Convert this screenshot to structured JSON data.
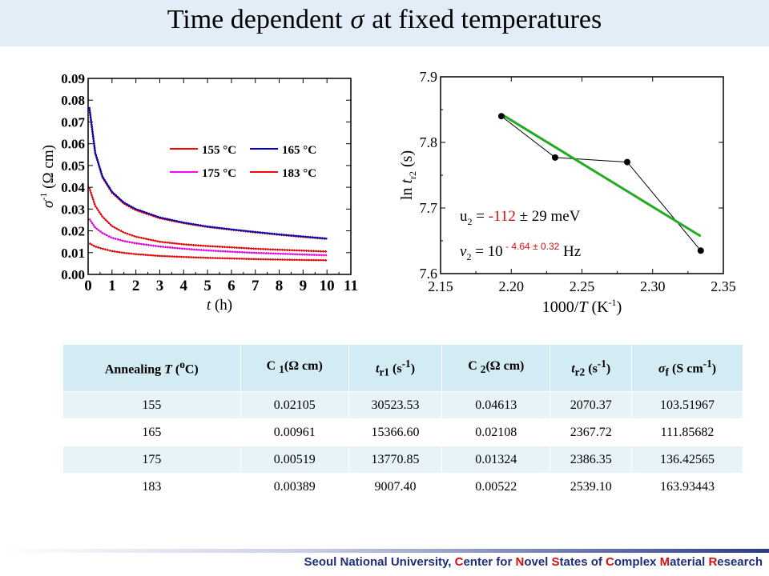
{
  "title": {
    "pre": "Time dependent",
    "sigma": "σ",
    "post": "at fixed temperatures"
  },
  "chart_data": [
    {
      "type": "line",
      "xlabel": "t (h)",
      "ylabel": "σ -1 (Ω cm)",
      "xlim": [
        0,
        11
      ],
      "ylim": [
        0,
        0.09
      ],
      "x_ticks": [
        "0",
        "1",
        "2",
        "3",
        "4",
        "5",
        "6",
        "7",
        "8",
        "9",
        "10",
        "11"
      ],
      "y_ticks": [
        "0.00",
        "0.01",
        "0.02",
        "0.03",
        "0.04",
        "0.05",
        "0.06",
        "0.07",
        "0.08",
        "0.09"
      ],
      "legend_position": "center-right",
      "series": [
        {
          "name": "155 °C",
          "color": "#ff0000",
          "x": [
            0.05,
            0.3,
            0.6,
            1,
            1.5,
            2,
            3,
            4,
            5,
            6,
            7,
            8,
            9,
            10
          ],
          "values": [
            0.0765,
            0.0555,
            0.0445,
            0.0375,
            0.0325,
            0.0295,
            0.0258,
            0.0235,
            0.0218,
            0.0205,
            0.0193,
            0.0182,
            0.0172,
            0.0163
          ]
        },
        {
          "name": "165 °C",
          "color": "#0000cc",
          "x": [
            0.05,
            0.3,
            0.6,
            1,
            1.5,
            2,
            3,
            4,
            5,
            6,
            7,
            8,
            9,
            10
          ],
          "values": [
            0.0768,
            0.056,
            0.045,
            0.038,
            0.033,
            0.03,
            0.0262,
            0.0238,
            0.022,
            0.0207,
            0.0195,
            0.0184,
            0.0174,
            0.0165
          ]
        },
        {
          "name": "175 °C",
          "color": "#ff00ff",
          "x": [
            0.05,
            0.3,
            0.6,
            1,
            1.5,
            2,
            3,
            4,
            5,
            6,
            7,
            8,
            9,
            10
          ],
          "values": [
            0.0255,
            0.0215,
            0.019,
            0.0168,
            0.0153,
            0.0143,
            0.0128,
            0.0118,
            0.011,
            0.0104,
            0.0099,
            0.0095,
            0.0091,
            0.0088
          ]
        },
        {
          "name": "183 °C",
          "color": "#ff0000",
          "x": [
            0.05,
            0.3,
            0.6,
            1,
            1.5,
            2,
            3,
            4,
            5,
            6,
            7,
            8,
            9,
            10
          ],
          "values": [
            0.0143,
            0.0128,
            0.0118,
            0.0107,
            0.0099,
            0.0093,
            0.0085,
            0.008,
            0.0076,
            0.0073,
            0.007,
            0.0068,
            0.0066,
            0.0065
          ]
        },
        {
          "x": [
            0.05,
            0.3,
            0.6,
            1,
            1.5,
            2,
            3,
            4,
            5,
            6,
            7,
            8,
            9,
            10
          ],
          "values": [
            0.0398,
            0.0315,
            0.0265,
            0.0222,
            0.0192,
            0.0173,
            0.015,
            0.0138,
            0.013,
            0.0124,
            0.0118,
            0.0113,
            0.0109,
            0.0105
          ]
        }
      ]
    },
    {
      "type": "scatter",
      "xlabel": "1000/T (K -1)",
      "ylabel": "ln t r2 (s)",
      "xlim": [
        2.15,
        2.35
      ],
      "ylim": [
        7.6,
        7.9
      ],
      "x_ticks": [
        "2.15",
        "2.20",
        "2.25",
        "2.30",
        "2.35"
      ],
      "y_ticks": [
        "7.6",
        "7.7",
        "7.8",
        "7.9"
      ],
      "points": {
        "x": [
          2.193,
          2.231,
          2.282,
          2.334
        ],
        "y": [
          7.84,
          7.777,
          7.77,
          7.635
        ]
      },
      "fit": {
        "x": [
          2.193,
          2.334
        ],
        "y": [
          7.843,
          7.657
        ],
        "color": "#22aa22"
      },
      "annotations": [
        {
          "label": "u",
          "sub": "2",
          "eq": " = ",
          "value": "-112",
          "pm": " ± 29 meV"
        },
        {
          "label": "ν",
          "sub": "2",
          "eq": " = 10",
          "exp": " - 4.64 ± 0.32",
          "unit": " Hz"
        }
      ]
    }
  ],
  "table": {
    "headers": [
      {
        "pre": "Annealing ",
        "it": "T",
        "post": " (",
        "sup": "o",
        "post2": "C)"
      },
      {
        "pre": "C ",
        "sub": "1",
        "post": "(Ω cm)"
      },
      {
        "it": "t",
        "sub": "r1",
        "post": " (s",
        "sup": "-1",
        "post2": ")"
      },
      {
        "pre": "C ",
        "sub": "2",
        "post": "(Ω cm)"
      },
      {
        "it": "t",
        "sub": "r2",
        "post": " (s",
        "sup": "-1",
        "post2": ")"
      },
      {
        "it": "σ",
        "sub": "f",
        "post": " (S cm",
        "sup": "-1",
        "post2": ")"
      }
    ],
    "rows": [
      [
        "155",
        "0.02105",
        "30523.53",
        "0.04613",
        "2070.37",
        "103.51967"
      ],
      [
        "165",
        "0.00961",
        "15366.60",
        "0.02108",
        "2367.72",
        "111.85682"
      ],
      [
        "175",
        "0.00519",
        "13770.85",
        "0.01324",
        "2386.35",
        "136.42565"
      ],
      [
        "183",
        "0.00389",
        "9007.40",
        "0.00522",
        "2539.10",
        "163.93443"
      ]
    ]
  },
  "footer": {
    "parts": [
      {
        "t": "Seoul National University, ",
        "r": false
      },
      {
        "t": "C",
        "r": true
      },
      {
        "t": "enter for ",
        "r": false
      },
      {
        "t": "N",
        "r": true
      },
      {
        "t": "ovel ",
        "r": false
      },
      {
        "t": "S",
        "r": true
      },
      {
        "t": "tates of ",
        "r": false
      },
      {
        "t": "C",
        "r": true
      },
      {
        "t": "omplex ",
        "r": false
      },
      {
        "t": "M",
        "r": true
      },
      {
        "t": "aterial ",
        "r": false
      },
      {
        "t": "R",
        "r": true
      },
      {
        "t": "esearch",
        "r": false
      }
    ]
  },
  "colors": {
    "accent_red": "#d01010",
    "footer_blue": "#1f2d7a",
    "table_header": "#d3ebf3",
    "table_stripe": "#e8f3f8",
    "title_band": "#e3edf7"
  }
}
